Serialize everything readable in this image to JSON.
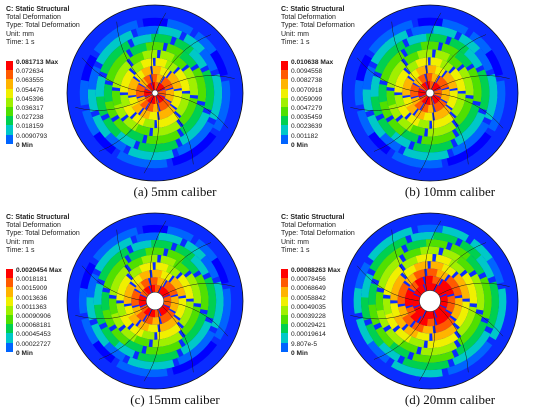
{
  "panels": [
    {
      "title": "C: Static Structural",
      "line2": "Total Deformation",
      "line3": "Type: Total Deformation",
      "line4": "Unit: mm",
      "line5": "Time: 1 s",
      "legend": [
        "0.081713",
        "0.072634",
        "0.063555",
        "0.054476",
        "0.045396",
        "0.036317",
        "0.027238",
        "0.018159",
        "0.0090793",
        "0"
      ],
      "max_tag": "Max",
      "min_tag": "Min",
      "caption": "(a) 5mm caliber",
      "hole_fraction": 0.02
    },
    {
      "title": "C: Static Structural",
      "line2": "Total Deformation",
      "line3": "Type: Total Deformation",
      "line4": "Unit: mm",
      "line5": "Time: 1 s",
      "legend": [
        "0.010638",
        "0.0094558",
        "0.0082738",
        "0.0070918",
        "0.0059099",
        "0.0047279",
        "0.0035459",
        "0.0023639",
        "0.001182",
        "0"
      ],
      "max_tag": "Max",
      "min_tag": "Min",
      "caption": "(b) 10mm caliber",
      "hole_fraction": 0.045
    },
    {
      "title": "C: Static Structural",
      "line2": "Total Deformation",
      "line3": "Type: Total Deformation",
      "line4": "Unit: mm",
      "line5": "Time: 1 s",
      "legend": [
        "0.0020454",
        "0.0018181",
        "0.0015909",
        "0.0013636",
        "0.0011363",
        "0.00090906",
        "0.00068181",
        "0.00045453",
        "0.00022727",
        "0"
      ],
      "max_tag": "Max",
      "min_tag": "Min",
      "caption": "(c) 15mm caliber",
      "hole_fraction": 0.1
    },
    {
      "title": "C: Static Structural",
      "line2": "Total Deformation",
      "line3": "Type: Total Deformation",
      "line4": "Unit: mm",
      "line5": "Time: 1 s",
      "legend": [
        "0.00088263",
        "0.00078456",
        "0.00068649",
        "0.00058842",
        "0.00049035",
        "0.00039228",
        "0.00029421",
        "0.00019614",
        "9.807e-5",
        "0"
      ],
      "max_tag": "Max",
      "min_tag": "Min",
      "caption": "(d) 20mm caliber",
      "hole_fraction": 0.12
    }
  ],
  "legend_colors": [
    "#ff0000",
    "#ff5a00",
    "#ffb400",
    "#f0f000",
    "#a0f000",
    "#50e000",
    "#00d050",
    "#00c8c8",
    "#0064ff",
    "#0000ff"
  ]
}
